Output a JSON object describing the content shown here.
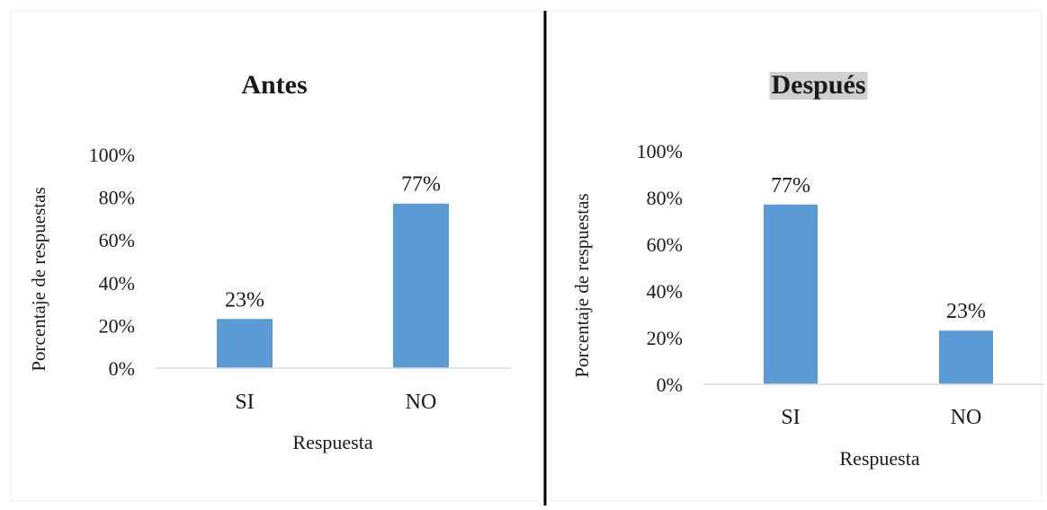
{
  "colors": {
    "bar": "#5b9bd5",
    "axis": "#d9d9d9",
    "divider": "#000000",
    "title_highlight": "#d0d0d0",
    "panel_border": "#eeeeee"
  },
  "chart_data": [
    {
      "type": "bar",
      "title": "Antes",
      "title_highlight": false,
      "categories": [
        "SI",
        "NO"
      ],
      "values": [
        23,
        77
      ],
      "value_labels": [
        "23%",
        "77%"
      ],
      "yticks": [
        "0%",
        "20%",
        "40%",
        "60%",
        "80%",
        "100%"
      ],
      "ylim": [
        0,
        100
      ],
      "xlabel": "Respuesta",
      "ylabel": "Porcentaje de respuestas",
      "grid": false,
      "legend": "none"
    },
    {
      "type": "bar",
      "title": "Después",
      "title_highlight": true,
      "categories": [
        "SI",
        "NO"
      ],
      "values": [
        77,
        23
      ],
      "value_labels": [
        "77%",
        "23%"
      ],
      "yticks": [
        "0%",
        "20%",
        "40%",
        "60%",
        "80%",
        "100%"
      ],
      "ylim": [
        0,
        100
      ],
      "xlabel": "Respuesta",
      "ylabel": "Porcentaje de respuestas",
      "grid": false,
      "legend": "none"
    }
  ]
}
